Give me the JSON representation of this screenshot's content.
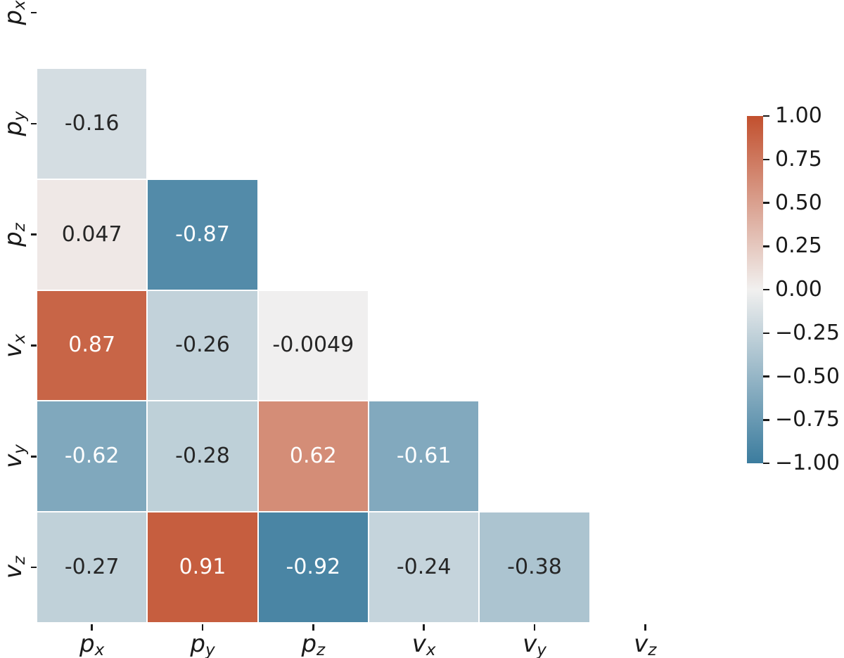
{
  "chart_data": {
    "type": "heatmap",
    "title": "",
    "xlabel": "",
    "ylabel": "",
    "x_tick_labels": [
      "p_x",
      "p_y",
      "p_z",
      "v_x",
      "v_y",
      "v_z"
    ],
    "y_tick_labels": [
      "p_x",
      "p_y",
      "p_z",
      "v_x",
      "v_y",
      "v_z"
    ],
    "mask": "upper-triangle-and-diagonal-hidden",
    "matrix": [
      [
        null,
        null,
        null,
        null,
        null,
        null
      ],
      [
        -0.16,
        null,
        null,
        null,
        null,
        null
      ],
      [
        0.047,
        -0.87,
        null,
        null,
        null,
        null
      ],
      [
        0.87,
        -0.26,
        -0.0049,
        null,
        null,
        null
      ],
      [
        -0.62,
        -0.28,
        0.62,
        -0.61,
        null,
        null
      ],
      [
        -0.27,
        0.91,
        -0.92,
        -0.24,
        -0.38,
        null
      ]
    ],
    "annotations": [
      [],
      [
        "-0.16"
      ],
      [
        "0.047",
        "-0.87"
      ],
      [
        "0.87",
        "-0.26",
        "-0.0049"
      ],
      [
        "-0.62",
        "-0.28",
        "0.62",
        "-0.61"
      ],
      [
        "-0.27",
        "0.91",
        "-0.92",
        "-0.24",
        "-0.38"
      ]
    ],
    "colorbar": {
      "position": "right",
      "vmin": -1.0,
      "vmax": 1.0,
      "tick_values": [
        1.0,
        0.75,
        0.5,
        0.25,
        0.0,
        -0.25,
        -0.5,
        -0.75,
        -1.0
      ],
      "tick_labels": [
        "1.00",
        "0.75",
        "0.50",
        "0.25",
        "0.00",
        "−0.25",
        "−0.50",
        "−0.75",
        "−1.00"
      ]
    },
    "colors": {
      "positive_end": "#c2502e",
      "midpoint": "#f1f0ef",
      "negative_end": "#3b7c9e",
      "annotation_dark": "#262626",
      "annotation_light": "#ffffff"
    },
    "grid": false,
    "legend": null
  }
}
